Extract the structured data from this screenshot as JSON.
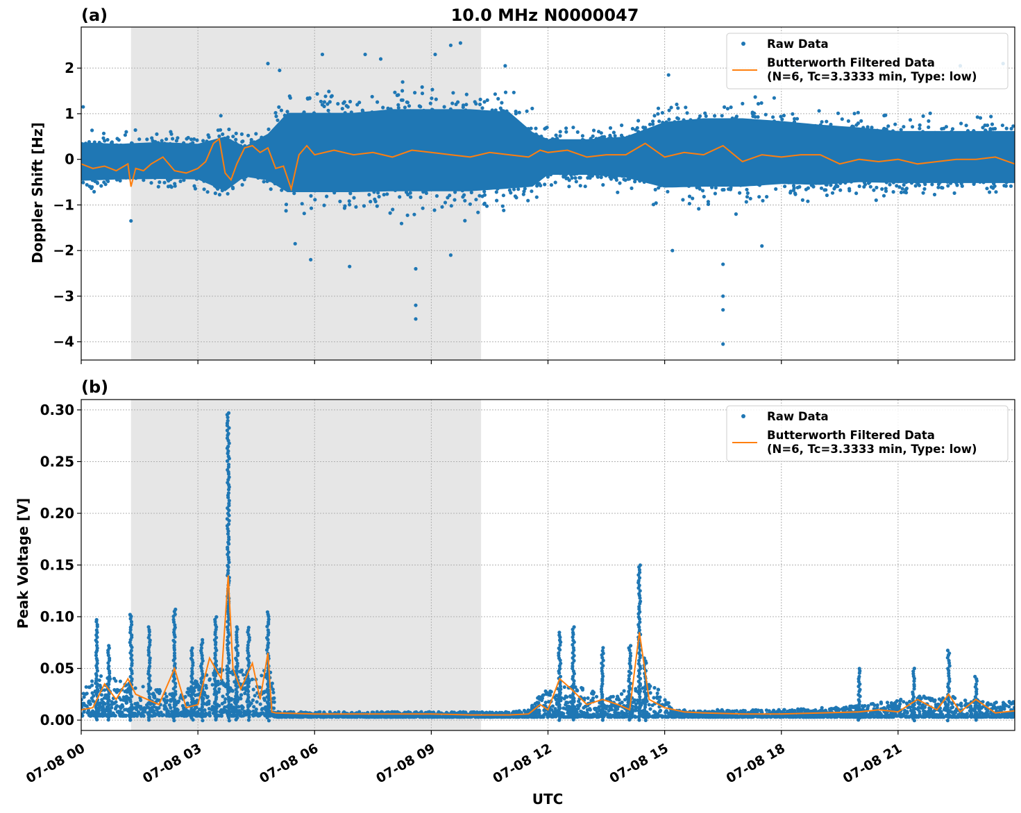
{
  "figure": {
    "title": "10.0 MHz N0000047",
    "xlabel": "UTC"
  },
  "chart_data": [
    {
      "type": "scatter",
      "panel_label": "(a)",
      "title": "10.0 MHz N0000047",
      "ylabel": "Doppler Shift [Hz]",
      "xlabel": "UTC",
      "x_unit": "hours since 07-08 00 UTC",
      "xlim": [
        0,
        24
      ],
      "ylim": [
        -4.4,
        2.9
      ],
      "x_ticks": [
        0,
        3,
        6,
        9,
        12,
        15,
        18,
        21
      ],
      "x_tick_labels": [
        "07-08 00",
        "07-08 03",
        "07-08 06",
        "07-08 09",
        "07-08 12",
        "07-08 15",
        "07-08 18",
        "07-08 21"
      ],
      "y_ticks": [
        2,
        1,
        0,
        -1,
        -2,
        -3,
        -4
      ],
      "y_tick_labels": [
        "2",
        "1",
        "0",
        "−1",
        "−2",
        "−3",
        "−4"
      ],
      "grid": true,
      "legend_position": "top-right",
      "shaded_region": [
        1.28,
        10.28
      ],
      "series": [
        {
          "name": "Raw Data",
          "kind": "scatter",
          "color": "#1f77b4",
          "band": {
            "x": [
              0,
              1,
              2,
              3,
              3.7,
              4.2,
              4.8,
              5.3,
              6,
              7,
              8,
              9,
              10,
              11,
              11.6,
              12,
              13,
              14,
              15,
              16,
              17,
              18,
              19,
              20,
              21,
              22,
              23,
              24
            ],
            "lower": [
              -0.75,
              -0.7,
              -0.7,
              -0.7,
              -1.1,
              -0.6,
              -0.8,
              -1.3,
              -1.3,
              -1.3,
              -1.3,
              -1.3,
              -1.3,
              -1.2,
              -1.0,
              -0.6,
              -0.6,
              -0.7,
              -1.1,
              -1.1,
              -1.1,
              -1.0,
              -1.0,
              -0.9,
              -0.9,
              -0.9,
              -0.9,
              -0.9
            ],
            "upper": [
              0.65,
              0.6,
              0.65,
              0.6,
              0.9,
              0.5,
              0.9,
              1.6,
              1.6,
              1.6,
              1.7,
              1.7,
              1.7,
              1.6,
              1.0,
              0.7,
              0.7,
              0.8,
              1.3,
              1.4,
              1.4,
              1.3,
              1.2,
              1.1,
              1.0,
              1.0,
              1.0,
              1.0
            ]
          },
          "outliers": [
            [
              0.05,
              1.15
            ],
            [
              1.28,
              -1.35
            ],
            [
              4.8,
              2.1
            ],
            [
              5.1,
              1.95
            ],
            [
              5.5,
              -1.85
            ],
            [
              5.9,
              -2.2
            ],
            [
              6.2,
              2.3
            ],
            [
              6.9,
              -2.35
            ],
            [
              7.3,
              2.3
            ],
            [
              7.7,
              2.2
            ],
            [
              8.6,
              -3.2
            ],
            [
              8.6,
              -3.5
            ],
            [
              8.6,
              -2.4
            ],
            [
              9.1,
              2.3
            ],
            [
              9.5,
              2.5
            ],
            [
              9.75,
              2.55
            ],
            [
              9.5,
              -2.1
            ],
            [
              10.9,
              2.05
            ],
            [
              15.1,
              1.85
            ],
            [
              15.2,
              -2.0
            ],
            [
              16.5,
              -4.05
            ],
            [
              16.5,
              -3.3
            ],
            [
              16.5,
              -3.0
            ],
            [
              16.5,
              -2.3
            ],
            [
              17.5,
              -1.9
            ],
            [
              18.4,
              2.05
            ],
            [
              22.6,
              2.05
            ],
            [
              23.7,
              2.1
            ]
          ]
        },
        {
          "name": "Butterworth Filtered Data\n(N=6, Tc=3.3333 min, Type: low)",
          "kind": "line",
          "color": "#ff7f0e",
          "x": [
            0,
            0.3,
            0.6,
            0.9,
            1.2,
            1.28,
            1.4,
            1.6,
            1.8,
            2.1,
            2.4,
            2.7,
            3.0,
            3.2,
            3.4,
            3.55,
            3.7,
            3.85,
            4.0,
            4.2,
            4.4,
            4.6,
            4.8,
            5.0,
            5.2,
            5.4,
            5.6,
            5.8,
            6.0,
            6.5,
            7.0,
            7.5,
            8.0,
            8.5,
            9.0,
            9.5,
            10.0,
            10.5,
            11.0,
            11.5,
            11.8,
            12.0,
            12.5,
            13.0,
            13.5,
            14.0,
            14.5,
            15.0,
            15.5,
            16.0,
            16.5,
            17.0,
            17.5,
            18.0,
            18.5,
            19.0,
            19.5,
            20.0,
            20.5,
            21.0,
            21.5,
            22.0,
            22.5,
            23.0,
            23.5,
            24.0
          ],
          "y": [
            -0.1,
            -0.2,
            -0.15,
            -0.25,
            -0.1,
            -0.6,
            -0.2,
            -0.25,
            -0.1,
            0.05,
            -0.25,
            -0.3,
            -0.2,
            -0.05,
            0.35,
            0.45,
            -0.3,
            -0.45,
            -0.1,
            0.25,
            0.3,
            0.15,
            0.25,
            -0.2,
            -0.15,
            -0.65,
            0.1,
            0.3,
            0.1,
            0.2,
            0.1,
            0.15,
            0.05,
            0.2,
            0.15,
            0.1,
            0.05,
            0.15,
            0.1,
            0.05,
            0.2,
            0.15,
            0.2,
            0.05,
            0.1,
            0.1,
            0.35,
            0.05,
            0.15,
            0.1,
            0.3,
            -0.05,
            0.1,
            0.05,
            0.1,
            0.1,
            -0.1,
            0.0,
            -0.05,
            0.0,
            -0.1,
            -0.05,
            0.0,
            0.0,
            0.05,
            -0.1
          ]
        }
      ]
    },
    {
      "type": "scatter",
      "panel_label": "(b)",
      "ylabel": "Peak Voltage [V]",
      "xlabel": "UTC",
      "x_unit": "hours since 07-08 00 UTC",
      "xlim": [
        0,
        24
      ],
      "ylim": [
        -0.01,
        0.31
      ],
      "x_ticks": [
        0,
        3,
        6,
        9,
        12,
        15,
        18,
        21
      ],
      "x_tick_labels": [
        "07-08 00",
        "07-08 03",
        "07-08 06",
        "07-08 09",
        "07-08 12",
        "07-08 15",
        "07-08 18",
        "07-08 21"
      ],
      "y_ticks": [
        0.3,
        0.25,
        0.2,
        0.15,
        0.1,
        0.05,
        0.0
      ],
      "y_tick_labels": [
        "0.30",
        "0.25",
        "0.20",
        "0.15",
        "0.10",
        "0.05",
        "0.00"
      ],
      "grid": true,
      "legend_position": "top-right",
      "shaded_region": [
        1.28,
        10.28
      ],
      "series": [
        {
          "name": "Raw Data",
          "kind": "scatter",
          "color": "#1f77b4",
          "band": {
            "x": [
              0,
              0.5,
              1.0,
              1.5,
              2.0,
              2.5,
              3.0,
              3.5,
              4.0,
              4.5,
              4.7,
              4.9,
              5.0,
              6.0,
              7.0,
              8.0,
              9.0,
              10.0,
              11.0,
              11.5,
              11.8,
              12.0,
              12.5,
              13.0,
              13.5,
              14.0,
              14.5,
              15.0,
              15.2,
              16.0,
              17.0,
              18.0,
              19.0,
              20.0,
              21.0,
              21.5,
              22.0,
              22.5,
              23.0,
              23.5,
              24.0
            ],
            "lower": [
              0.004,
              0.004,
              0.004,
              0.004,
              0.004,
              0.004,
              0.004,
              0.004,
              0.004,
              0.004,
              0.004,
              0.004,
              0.003,
              0.003,
              0.003,
              0.003,
              0.003,
              0.003,
              0.003,
              0.003,
              0.003,
              0.003,
              0.003,
              0.003,
              0.003,
              0.003,
              0.003,
              0.003,
              0.003,
              0.003,
              0.003,
              0.003,
              0.003,
              0.003,
              0.003,
              0.003,
              0.003,
              0.003,
              0.003,
              0.003,
              0.003
            ],
            "upper": [
              0.03,
              0.045,
              0.04,
              0.035,
              0.03,
              0.025,
              0.04,
              0.05,
              0.055,
              0.04,
              0.05,
              0.05,
              0.008,
              0.008,
              0.008,
              0.008,
              0.008,
              0.008,
              0.008,
              0.01,
              0.025,
              0.03,
              0.035,
              0.03,
              0.025,
              0.03,
              0.04,
              0.03,
              0.01,
              0.01,
              0.01,
              0.01,
              0.012,
              0.014,
              0.02,
              0.025,
              0.02,
              0.025,
              0.02,
              0.018,
              0.018
            ]
          },
          "spikes": [
            [
              0.4,
              0.097
            ],
            [
              0.7,
              0.072
            ],
            [
              1.28,
              0.102
            ],
            [
              1.75,
              0.09
            ],
            [
              2.4,
              0.108
            ],
            [
              2.85,
              0.07
            ],
            [
              3.1,
              0.078
            ],
            [
              3.45,
              0.1
            ],
            [
              3.78,
              0.297
            ],
            [
              4.0,
              0.09
            ],
            [
              4.3,
              0.09
            ],
            [
              4.8,
              0.106
            ],
            [
              12.3,
              0.085
            ],
            [
              12.65,
              0.09
            ],
            [
              13.4,
              0.07
            ],
            [
              14.1,
              0.072
            ],
            [
              14.35,
              0.15
            ],
            [
              14.5,
              0.06
            ],
            [
              20.0,
              0.05
            ],
            [
              22.3,
              0.068
            ],
            [
              23.0,
              0.043
            ],
            [
              21.4,
              0.05
            ]
          ]
        },
        {
          "name": "Butterworth Filtered Data\n(N=6, Tc=3.3333 min, Type: low)",
          "kind": "line",
          "color": "#ff7f0e",
          "x": [
            0,
            0.3,
            0.6,
            0.9,
            1.2,
            1.4,
            1.7,
            2.0,
            2.4,
            2.7,
            3.0,
            3.3,
            3.6,
            3.78,
            3.9,
            4.1,
            4.4,
            4.6,
            4.8,
            4.9,
            5.0,
            6.0,
            7.0,
            8.0,
            9.0,
            10.0,
            11.0,
            11.5,
            11.8,
            12.0,
            12.3,
            12.6,
            13.0,
            13.4,
            13.8,
            14.1,
            14.35,
            14.6,
            15.0,
            15.5,
            16.0,
            17.0,
            18.0,
            19.0,
            20.0,
            20.5,
            21.0,
            21.5,
            22.0,
            22.3,
            22.6,
            23.0,
            23.5,
            24.0
          ],
          "y": [
            0.01,
            0.012,
            0.035,
            0.02,
            0.04,
            0.025,
            0.02,
            0.015,
            0.05,
            0.012,
            0.015,
            0.06,
            0.04,
            0.14,
            0.05,
            0.03,
            0.055,
            0.02,
            0.065,
            0.008,
            0.007,
            0.006,
            0.006,
            0.006,
            0.006,
            0.005,
            0.005,
            0.006,
            0.015,
            0.01,
            0.04,
            0.03,
            0.015,
            0.02,
            0.015,
            0.01,
            0.085,
            0.02,
            0.012,
            0.008,
            0.007,
            0.006,
            0.006,
            0.007,
            0.008,
            0.01,
            0.008,
            0.02,
            0.01,
            0.025,
            0.008,
            0.02,
            0.007,
            0.009
          ]
        }
      ]
    }
  ]
}
